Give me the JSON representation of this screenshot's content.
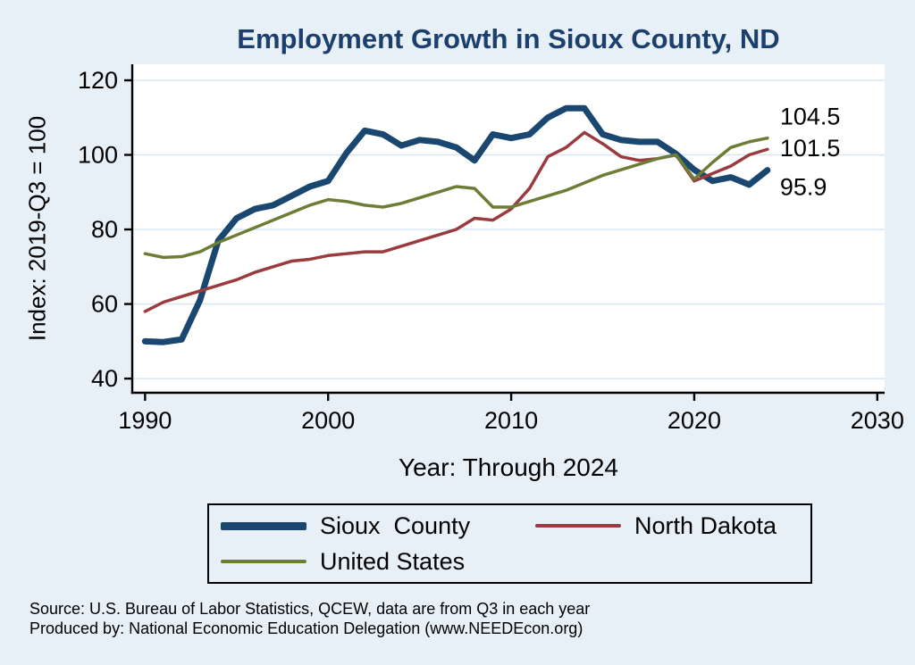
{
  "chart_data": {
    "type": "line",
    "title": "Employment Growth in Sioux County, ND",
    "xlabel": "Year: Through 2024",
    "ylabel": "Index: 2019-Q3 = 100",
    "x": [
      1990,
      1991,
      1992,
      1993,
      1994,
      1995,
      1996,
      1997,
      1998,
      1999,
      2000,
      2001,
      2002,
      2003,
      2004,
      2005,
      2006,
      2007,
      2008,
      2009,
      2010,
      2011,
      2012,
      2013,
      2014,
      2015,
      2016,
      2017,
      2018,
      2019,
      2020,
      2021,
      2022,
      2023,
      2024
    ],
    "series": [
      {
        "name": "Sioux  County",
        "color": "#1a476f",
        "end_label": "95.9",
        "values": [
          50,
          49.8,
          50.5,
          61,
          77,
          83,
          85.5,
          86.5,
          89,
          91.5,
          93,
          100.5,
          106.5,
          105.5,
          102.5,
          104,
          103.5,
          102,
          98.5,
          105.5,
          104.5,
          105.5,
          110,
          112.5,
          112.5,
          105.5,
          104,
          103.5,
          103.5,
          100.3,
          96,
          93,
          94,
          92,
          95.9
        ]
      },
      {
        "name": "North Dakota",
        "color": "#9a3b3f",
        "end_label": "101.5",
        "values": [
          58,
          60.5,
          62,
          63.5,
          65,
          66.5,
          68.5,
          70,
          71.5,
          72,
          73,
          73.5,
          74,
          74,
          75.5,
          77,
          78.5,
          80,
          83,
          82.5,
          85.5,
          91,
          99.5,
          102,
          106,
          103,
          99.5,
          98.5,
          99,
          100,
          93,
          95,
          97,
          100,
          101.5
        ]
      },
      {
        "name": "United States",
        "color": "#6d7d36",
        "end_label": "104.5",
        "values": [
          73.5,
          72.5,
          72.7,
          74,
          76.5,
          78.5,
          80.5,
          82.5,
          84.5,
          86.5,
          88,
          87.5,
          86.5,
          86,
          87,
          88.5,
          90,
          91.5,
          91,
          86,
          86,
          87.5,
          89,
          90.5,
          92.5,
          94.5,
          96,
          97.5,
          99,
          100,
          93.5,
          98,
          102,
          103.5,
          104.5
        ]
      }
    ],
    "xticks": [
      1990,
      2000,
      2010,
      2020,
      2030
    ],
    "yticks": [
      40,
      60,
      80,
      100,
      120
    ],
    "xlim": [
      1989.3,
      2030.4
    ],
    "ylim": [
      36.2,
      124.3
    ],
    "grid": "horizontal",
    "legend_position": "bottom",
    "colors": {
      "background": "#e7f0f7",
      "plot_background": "#ffffff",
      "grid": "#d8e6f0",
      "axis": "#000000",
      "title": "#1c3f6e"
    },
    "notes": [
      "Source: U.S. Bureau of Labor Statistics, QCEW, data are from Q3 in each year",
      "Produced by: National Economic Education Delegation (www.NEEDEcon.org)"
    ]
  }
}
